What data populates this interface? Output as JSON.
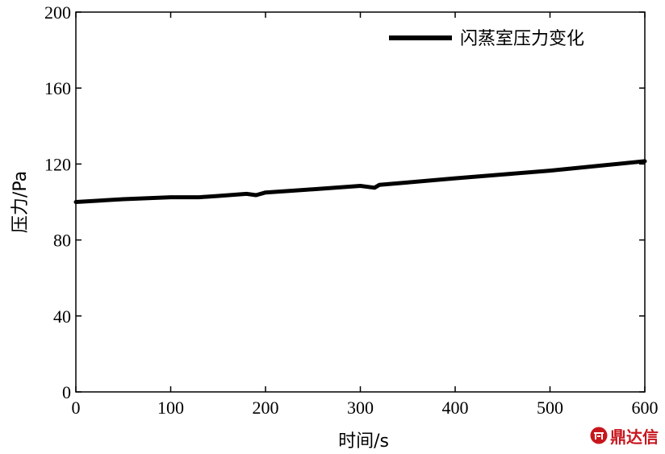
{
  "chart_data": {
    "type": "line",
    "title": "",
    "xlabel": "时间/s",
    "ylabel": "压力/Pa",
    "xlim": [
      0,
      600
    ],
    "ylim": [
      0,
      200
    ],
    "xticks": [
      0,
      100,
      200,
      300,
      400,
      500,
      600
    ],
    "yticks": [
      0,
      40,
      80,
      120,
      160,
      200
    ],
    "grid": false,
    "legend_position": "top-right",
    "series": [
      {
        "name": "闪蒸室压力变化",
        "color": "#000000",
        "x": [
          0,
          50,
          100,
          130,
          150,
          180,
          190,
          200,
          250,
          300,
          315,
          320,
          350,
          400,
          450,
          500,
          550,
          600
        ],
        "y": [
          100,
          101.5,
          102.5,
          102.5,
          103.2,
          104.3,
          103.6,
          105,
          106.7,
          108.5,
          107.5,
          109,
          110.3,
          112.5,
          114.5,
          116.5,
          119,
          121.5
        ]
      }
    ]
  },
  "watermark": {
    "text": "鼎达信",
    "color": "#c8161d"
  }
}
